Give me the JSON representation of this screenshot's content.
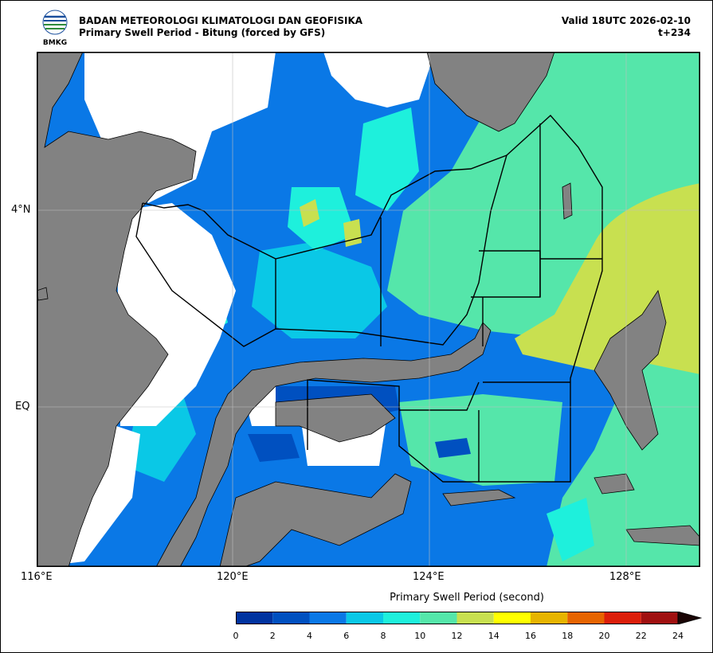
{
  "header": {
    "agency": "BADAN METEOROLOGI KLIMATOLOGI DAN GEOFISIKA",
    "title": "Primary Swell Period - Bitung (forced by GFS)",
    "valid": "Valid 18UTC 2026-02-10",
    "lead": "t+234",
    "logo_text": "BMKG"
  },
  "axes": {
    "x_ticks": [
      "116°E",
      "120°E",
      "124°E",
      "128°E"
    ],
    "y_ticks": [
      "4°N",
      "EQ"
    ]
  },
  "colorbar": {
    "title": "Primary Swell Period (second)",
    "labels": [
      "0",
      "2",
      "4",
      "6",
      "8",
      "10",
      "12",
      "14",
      "16",
      "18",
      "20",
      "22",
      "24"
    ],
    "colors": [
      "#0033a0",
      "#0050c0",
      "#0a78e6",
      "#0ac8e6",
      "#1ef0dc",
      "#55e6aa",
      "#c8e050",
      "#ffff00",
      "#e6b400",
      "#e66400",
      "#dc1e0a",
      "#a01010",
      "#1a0505"
    ]
  },
  "map_colors": {
    "land": "#828282",
    "no_data": "#ffffff",
    "p0_2": "#0033a0",
    "p2_4": "#0050c0",
    "p4_6": "#0a78e6",
    "p6_8": "#0ac8e6",
    "p8_10": "#1ef0dc",
    "p10_12": "#55e6aa",
    "p12_14": "#c8e050"
  }
}
